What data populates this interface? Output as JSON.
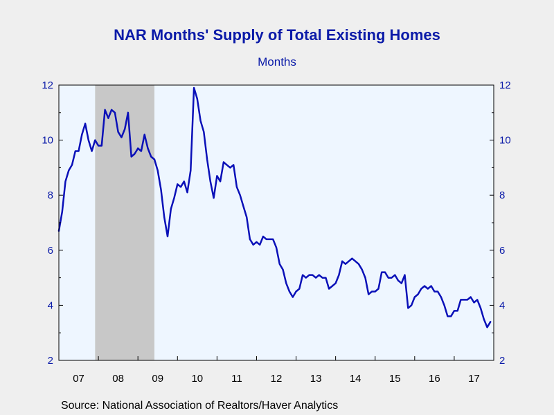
{
  "title": "NAR Months' Supply of Total Existing Homes",
  "subtitle": "Months",
  "source": "Source:  National Association of Realtors/Haver Analytics",
  "colors": {
    "background": "#efefef",
    "plot_background": "#eef6ff",
    "line": "#0a10b8",
    "text": "#0a1aa8",
    "recession_band": "#c8c8c8"
  },
  "chart_data": {
    "type": "line",
    "title": "NAR Months' Supply of Total Existing Homes",
    "ylabel": "Months",
    "ylim": [
      2,
      12
    ],
    "yticks": [
      2,
      4,
      6,
      8,
      10,
      12
    ],
    "xlim": [
      2007.0,
      2018.0
    ],
    "x_tick_labels": [
      "07",
      "08",
      "09",
      "10",
      "11",
      "12",
      "13",
      "14",
      "15",
      "16",
      "17"
    ],
    "x_tick_years": [
      2007,
      2008,
      2009,
      2010,
      2011,
      2012,
      2013,
      2014,
      2015,
      2016,
      2017
    ],
    "recession_shading": {
      "start": "2007-12",
      "end": "2009-06"
    },
    "grid": false,
    "series": [
      {
        "start": "2007-01",
        "frequency": "monthly",
        "values": [
          6.7,
          7.4,
          8.5,
          8.9,
          9.1,
          9.6,
          9.6,
          10.2,
          10.6,
          10.0,
          9.6,
          10.0,
          9.8,
          9.8,
          11.1,
          10.8,
          11.1,
          11.0,
          10.3,
          10.1,
          10.4,
          11.0,
          9.4,
          9.5,
          9.7,
          9.6,
          10.2,
          9.7,
          9.4,
          9.3,
          8.9,
          8.2,
          7.2,
          6.5,
          7.5,
          7.9,
          8.4,
          8.3,
          8.5,
          8.1,
          8.9,
          11.9,
          11.5,
          10.7,
          10.3,
          9.3,
          8.5,
          7.9,
          8.7,
          8.5,
          9.2,
          9.1,
          9.0,
          9.1,
          8.3,
          8.0,
          7.6,
          7.2,
          6.4,
          6.2,
          6.3,
          6.2,
          6.5,
          6.4,
          6.4,
          6.4,
          6.1,
          5.5,
          5.3,
          4.8,
          4.5,
          4.3,
          4.5,
          4.6,
          5.1,
          5.0,
          5.1,
          5.1,
          5.0,
          5.1,
          5.0,
          5.0,
          4.6,
          4.7,
          4.8,
          5.1,
          5.6,
          5.5,
          5.6,
          5.7,
          5.6,
          5.5,
          5.3,
          5.0,
          4.4,
          4.5,
          4.5,
          4.6,
          5.2,
          5.2,
          5.0,
          5.0,
          5.1,
          4.9,
          4.8,
          5.1,
          3.9,
          4.0,
          4.3,
          4.4,
          4.6,
          4.7,
          4.6,
          4.7,
          4.5,
          4.5,
          4.3,
          4.0,
          3.6,
          3.6,
          3.8,
          3.8,
          4.2,
          4.2,
          4.2,
          4.3,
          4.1,
          4.2,
          3.9,
          3.5,
          3.2,
          3.4
        ]
      }
    ]
  }
}
